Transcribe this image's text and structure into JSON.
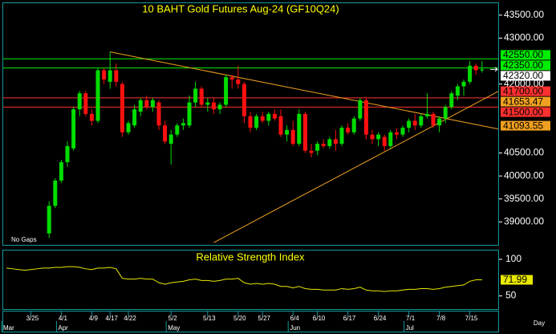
{
  "chart_data": [
    {
      "type": "candlestick",
      "title": "10 BAHT  Gold Futures Aug-24  (GF10Q24)",
      "note": "No Gaps",
      "x_axis_label": "Day",
      "categories": [
        null,
        null,
        null,
        null,
        "3/25",
        null,
        null,
        null,
        null,
        "4/1",
        null,
        null,
        null,
        null,
        "4/9",
        null,
        null,
        "4/17",
        null,
        null,
        "4/22",
        null,
        null,
        null,
        null,
        null,
        null,
        "5/2",
        null,
        null,
        null,
        null,
        null,
        "5/13",
        null,
        null,
        null,
        null,
        "5/20",
        null,
        null,
        null,
        "5/27",
        null,
        null,
        null,
        null,
        "6/4",
        null,
        null,
        null,
        "6/10",
        null,
        null,
        null,
        null,
        "6/17",
        null,
        null,
        null,
        null,
        "6/24",
        null,
        null,
        null,
        null,
        "7/1",
        null,
        null,
        null,
        null,
        "7/8",
        null,
        null,
        null,
        null,
        "7/15",
        null,
        null
      ],
      "month_labels": [
        "Mar",
        null,
        null,
        null,
        null,
        null,
        null,
        null,
        null,
        "Apr",
        null,
        null,
        null,
        null,
        null,
        null,
        null,
        null,
        null,
        null,
        null,
        null,
        null,
        null,
        null,
        null,
        null,
        "May",
        null,
        null,
        null,
        null,
        null,
        null,
        null,
        null,
        null,
        null,
        null,
        null,
        null,
        null,
        null,
        null,
        null,
        null,
        null,
        "Jun",
        null,
        null,
        null,
        null,
        null,
        null,
        null,
        null,
        null,
        null,
        null,
        null,
        null,
        null,
        null,
        null,
        null,
        null,
        "Jul",
        null,
        null,
        null,
        null,
        null,
        null,
        null,
        null,
        null,
        null,
        null,
        null
      ],
      "open": [
        null,
        null,
        null,
        null,
        null,
        null,
        null,
        38750,
        39350,
        39900,
        40300,
        40600,
        41450,
        41800,
        41350,
        41200,
        42300,
        42050,
        42300,
        42000,
        40950,
        41100,
        41400,
        41650,
        41500,
        41600,
        41100,
        40700,
        40900,
        41100,
        41100,
        41600,
        41900,
        41550,
        41600,
        41450,
        41550,
        42150,
        42100,
        42000,
        41300,
        41050,
        41300,
        41200,
        41350,
        41300,
        40900,
        41000,
        40700,
        41350,
        40550,
        40550,
        40700,
        40650,
        40800,
        40700,
        41050,
        40950,
        41250,
        41650,
        40900,
        40800,
        40850,
        40650,
        40950,
        40900,
        41050,
        41200,
        41100,
        41300,
        41350,
        41100,
        41250,
        41500,
        41750,
        41950,
        42050,
        42400,
        42300
      ],
      "high": [
        null,
        null,
        null,
        null,
        null,
        null,
        null,
        39450,
        39950,
        40350,
        40750,
        41500,
        41850,
        41850,
        41450,
        42350,
        42350,
        42700,
        42450,
        42050,
        41200,
        41550,
        41700,
        41750,
        41700,
        41650,
        41200,
        41000,
        41150,
        41250,
        41750,
        42050,
        41950,
        41700,
        41700,
        41600,
        42200,
        42200,
        42400,
        42050,
        41400,
        41350,
        41400,
        41400,
        41450,
        41450,
        41100,
        41200,
        41450,
        41400,
        40700,
        40750,
        40800,
        40850,
        41000,
        41100,
        41150,
        41300,
        41700,
        41700,
        41000,
        40950,
        40900,
        41000,
        41050,
        41100,
        41250,
        41350,
        41350,
        41800,
        41400,
        41300,
        41550,
        41850,
        42000,
        42100,
        42500,
        42450,
        42500
      ],
      "low": [
        null,
        null,
        null,
        null,
        null,
        null,
        null,
        38650,
        39300,
        39850,
        40200,
        40550,
        41300,
        41300,
        41100,
        41150,
        42000,
        41900,
        41950,
        40850,
        40900,
        41050,
        41300,
        41450,
        41400,
        41000,
        40700,
        40250,
        40850,
        41000,
        41050,
        41500,
        41500,
        41400,
        41350,
        41350,
        41500,
        41900,
        41900,
        41150,
        40950,
        41000,
        41150,
        41100,
        41200,
        40850,
        40750,
        40650,
        40650,
        40500,
        40400,
        40450,
        40600,
        40600,
        40550,
        40650,
        40900,
        40900,
        41200,
        40800,
        40700,
        40650,
        40550,
        40600,
        40800,
        40850,
        40950,
        41000,
        41050,
        41250,
        41050,
        40950,
        41150,
        41450,
        41650,
        41750,
        42000,
        42200,
        42250
      ],
      "close": [
        null,
        null,
        null,
        null,
        null,
        null,
        null,
        39350,
        39900,
        40300,
        40650,
        41450,
        41800,
        41350,
        41200,
        42300,
        42100,
        42300,
        42050,
        40950,
        41150,
        41450,
        41650,
        41500,
        41650,
        41100,
        40750,
        40900,
        41100,
        41150,
        41600,
        41900,
        41550,
        41600,
        41450,
        41550,
        42150,
        42100,
        42000,
        41300,
        41050,
        41300,
        41200,
        41350,
        41250,
        40900,
        41000,
        40700,
        41350,
        40550,
        40500,
        40700,
        40650,
        40800,
        40700,
        41050,
        40950,
        41250,
        41650,
        40900,
        40800,
        40900,
        40650,
        40950,
        40900,
        41050,
        41200,
        41100,
        41300,
        41350,
        41100,
        41250,
        41500,
        41800,
        41950,
        42050,
        42400,
        42300,
        42320
      ],
      "up_color": "#00dd00",
      "down_color": "#ff1010",
      "ylim": [
        38500,
        43760
      ],
      "yticks": [
        {
          "value": 43500,
          "label": "43500.00"
        },
        {
          "value": 43000,
          "label": "43000.00"
        },
        {
          "value": 42000,
          "label": "42000.00"
        },
        {
          "value": 40500,
          "label": "40500.00"
        },
        {
          "value": 40000,
          "label": "40000.00"
        },
        {
          "value": 39500,
          "label": "39500.00"
        },
        {
          "value": 39000,
          "label": "39000.00"
        }
      ],
      "levels": [
        {
          "value": 42550,
          "label": "42550.00",
          "color": "#00ee00"
        },
        {
          "value": 42350,
          "label": "42350.00",
          "color": "#00ee00"
        },
        {
          "value": 41700,
          "label": "41700.00",
          "color": "#ff3030"
        },
        {
          "value": 41500,
          "label": "41500.00",
          "color": "#ff3030"
        }
      ],
      "trendlines": [
        {
          "color": "#f0a020",
          "points": [
            {
              "x": 17,
              "y": 42700
            },
            {
              "x": 78,
              "y": 41093.55
            }
          ]
        },
        {
          "color": "#f0a020",
          "points": [
            {
              "x": 34,
              "y": 38550
            },
            {
              "x": 78,
              "y": 41653.47
            }
          ]
        }
      ],
      "last_label": {
        "value": 42320,
        "label": "42320.00",
        "color": "#ffffff"
      }
    },
    {
      "type": "line",
      "title": "Relative Strength Index",
      "color": "#e8e800",
      "values": [
        88,
        87,
        86,
        85,
        86,
        87,
        88,
        88,
        89,
        89,
        90,
        90,
        89,
        87,
        86,
        88,
        88,
        89,
        87,
        74,
        73,
        73,
        74,
        73,
        73,
        68,
        66,
        68,
        69,
        70,
        72,
        73,
        71,
        71,
        70,
        71,
        73,
        73,
        74,
        68,
        66,
        67,
        66,
        67,
        66,
        63,
        63,
        61,
        63,
        60,
        59,
        59,
        58,
        58,
        58,
        60,
        59,
        60,
        62,
        58,
        57,
        57,
        56,
        57,
        57,
        58,
        59,
        59,
        60,
        60,
        59,
        60,
        62,
        63,
        64,
        65,
        70,
        72,
        71.99
      ],
      "ylim": [
        32,
        112
      ],
      "yticks": [
        100,
        50
      ]
    }
  ]
}
